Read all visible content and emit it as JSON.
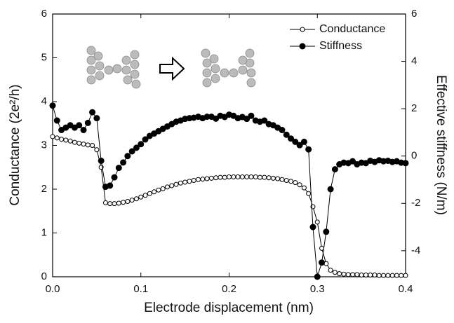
{
  "chart_data": {
    "type": "line",
    "xlabel": "Electrode displacement (nm)",
    "ylabel": "Conductance (2e²/h)",
    "y2label": "Effective stiffness (N/m)",
    "x": [
      0,
      0.005,
      0.01,
      0.015,
      0.02,
      0.025,
      0.03,
      0.035,
      0.04,
      0.045,
      0.05,
      0.055,
      0.06,
      0.065,
      0.07,
      0.075,
      0.08,
      0.085,
      0.09,
      0.095,
      0.1,
      0.105,
      0.11,
      0.115,
      0.12,
      0.125,
      0.13,
      0.135,
      0.14,
      0.145,
      0.15,
      0.155,
      0.16,
      0.165,
      0.17,
      0.175,
      0.18,
      0.185,
      0.19,
      0.195,
      0.2,
      0.205,
      0.21,
      0.215,
      0.22,
      0.225,
      0.23,
      0.235,
      0.24,
      0.245,
      0.25,
      0.255,
      0.26,
      0.265,
      0.27,
      0.275,
      0.28,
      0.285,
      0.29,
      0.295,
      0.3,
      0.305,
      0.31,
      0.315,
      0.32,
      0.325,
      0.33,
      0.335,
      0.34,
      0.345,
      0.35,
      0.355,
      0.36,
      0.365,
      0.37,
      0.375,
      0.38,
      0.385,
      0.39,
      0.395,
      0.4
    ],
    "series": [
      {
        "name": "Conductance",
        "color": "#000000",
        "marker": "open",
        "values": [
          3.2,
          3.17,
          3.14,
          3.12,
          3.1,
          3.07,
          3.05,
          3.03,
          3.01,
          3.0,
          2.9,
          2.5,
          1.69,
          1.67,
          1.67,
          1.68,
          1.7,
          1.72,
          1.75,
          1.78,
          1.82,
          1.86,
          1.9,
          1.94,
          1.98,
          2.01,
          2.05,
          2.08,
          2.11,
          2.14,
          2.16,
          2.18,
          2.2,
          2.22,
          2.23,
          2.24,
          2.25,
          2.26,
          2.27,
          2.27,
          2.28,
          2.28,
          2.28,
          2.28,
          2.28,
          2.28,
          2.28,
          2.27,
          2.27,
          2.26,
          2.25,
          2.24,
          2.22,
          2.2,
          2.18,
          2.15,
          2.1,
          2.03,
          1.9,
          1.6,
          1.25,
          0.65,
          0.3,
          0.15,
          0.1,
          0.07,
          0.06,
          0.05,
          0.05,
          0.05,
          0.04,
          0.04,
          0.04,
          0.04,
          0.03,
          0.03,
          0.03,
          0.03,
          0.03,
          0.03,
          0.03
        ]
      },
      {
        "name": "Stiffness",
        "color": "#000000",
        "marker": "filled",
        "axis": "y2",
        "values": [
          2.13,
          1.5,
          1.1,
          1.2,
          1.3,
          1.2,
          1.3,
          1.1,
          1.4,
          1.85,
          1.6,
          -0.2,
          -1.3,
          -1.25,
          -0.9,
          -0.5,
          -0.27,
          0.0,
          0.2,
          0.35,
          0.5,
          0.7,
          0.85,
          0.95,
          1.05,
          1.15,
          1.25,
          1.35,
          1.45,
          1.5,
          1.57,
          1.6,
          1.62,
          1.66,
          1.6,
          1.66,
          1.66,
          1.58,
          1.7,
          1.65,
          1.75,
          1.7,
          1.6,
          1.65,
          1.57,
          1.7,
          1.5,
          1.45,
          1.5,
          1.35,
          1.3,
          1.2,
          1.1,
          0.9,
          0.74,
          0.6,
          0.46,
          0.6,
          0.28,
          -3.0,
          -5.1,
          -4.5,
          -3.2,
          -1.4,
          -0.56,
          -0.35,
          -0.28,
          -0.3,
          -0.22,
          -0.35,
          -0.28,
          -0.3,
          -0.2,
          -0.25,
          -0.18,
          -0.22,
          -0.2,
          -0.25,
          -0.22,
          -0.28,
          -0.3
        ]
      }
    ],
    "xlim": [
      0,
      0.4
    ],
    "xticks": [
      {
        "value": 0,
        "label": "0.0"
      },
      0.1,
      0.2,
      0.3,
      0.4
    ],
    "ylim": [
      0,
      6
    ],
    "yticks": [
      0,
      1,
      2,
      3,
      4,
      5,
      6
    ],
    "y2lim": [
      -5.1,
      6
    ],
    "y2ticks": [
      -4,
      -2,
      0,
      2,
      4,
      6
    ],
    "legend": "upper right",
    "grid": false
  }
}
